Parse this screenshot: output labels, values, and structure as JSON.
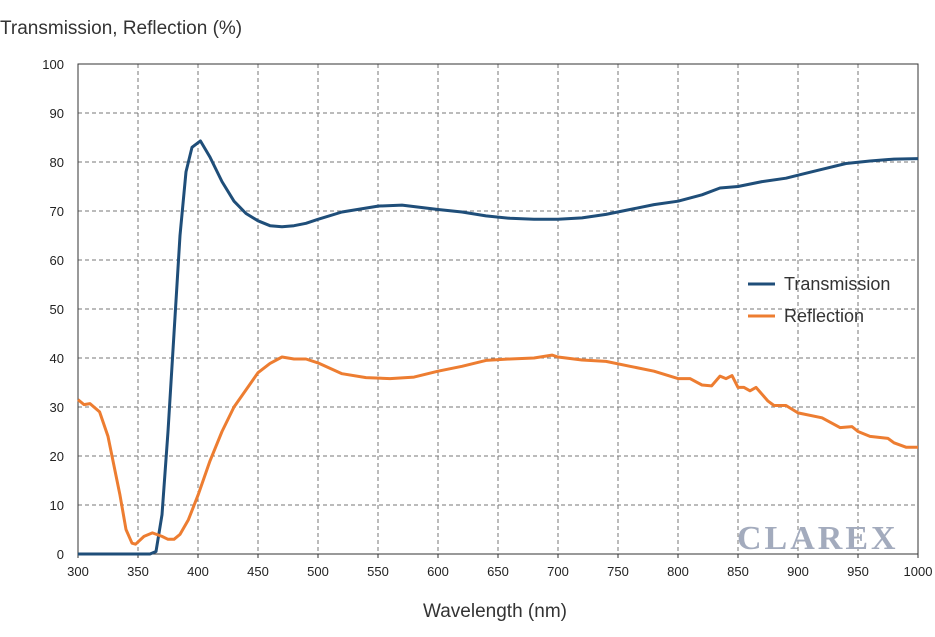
{
  "chart_data": {
    "type": "line",
    "title": "Transmission, Reflection (%)",
    "xlabel": "Wavelength (nm)",
    "ylabel": "Transmission, Reflection (%)",
    "xlim": [
      300,
      1000
    ],
    "ylim": [
      0,
      100
    ],
    "xticks": [
      300,
      350,
      400,
      450,
      500,
      550,
      600,
      650,
      700,
      750,
      800,
      850,
      900,
      950,
      1000
    ],
    "yticks": [
      0,
      10,
      20,
      30,
      40,
      50,
      60,
      70,
      80,
      90,
      100
    ],
    "grid": true,
    "legend_position": "right",
    "watermark": "CLAREX",
    "series": [
      {
        "name": "Transmission",
        "color": "#1f4e79",
        "x": [
          300,
          360,
          365,
          370,
          375,
          380,
          385,
          390,
          395,
          402,
          410,
          420,
          430,
          440,
          450,
          460,
          470,
          480,
          490,
          500,
          520,
          550,
          570,
          600,
          620,
          640,
          660,
          680,
          700,
          720,
          740,
          760,
          780,
          800,
          820,
          835,
          850,
          870,
          890,
          900,
          920,
          940,
          960,
          980,
          1000
        ],
        "y": [
          0,
          0,
          0.5,
          8,
          25,
          45,
          65,
          78,
          83,
          84.3,
          81,
          76,
          72,
          69.5,
          68,
          67,
          66.8,
          67,
          67.5,
          68.3,
          69.8,
          71,
          71.2,
          70.3,
          69.8,
          69,
          68.5,
          68.3,
          68.3,
          68.6,
          69.3,
          70.3,
          71.3,
          72,
          73.3,
          74.7,
          75,
          76,
          76.7,
          77.3,
          78.5,
          79.7,
          80.2,
          80.6,
          80.7
        ]
      },
      {
        "name": "Reflection",
        "color": "#ed7d31",
        "x": [
          300,
          305,
          310,
          318,
          325,
          335,
          340,
          345,
          348,
          355,
          362,
          370,
          375,
          380,
          385,
          392,
          400,
          410,
          420,
          430,
          440,
          450,
          460,
          470,
          480,
          490,
          500,
          520,
          540,
          560,
          580,
          600,
          620,
          640,
          660,
          680,
          695,
          700,
          720,
          740,
          760,
          780,
          800,
          810,
          820,
          828,
          835,
          840,
          845,
          850,
          855,
          860,
          865,
          875,
          880,
          890,
          900,
          920,
          935,
          945,
          950,
          960,
          975,
          980,
          990,
          1000
        ],
        "y": [
          31.5,
          30.5,
          30.7,
          29,
          24,
          12,
          5,
          2.2,
          2,
          3.6,
          4.3,
          3.6,
          3,
          3,
          4,
          7,
          12,
          19,
          25,
          30,
          33.5,
          37,
          38.9,
          40.2,
          39.8,
          39.8,
          39,
          36.8,
          36,
          35.8,
          36.1,
          37.3,
          38.3,
          39.5,
          39.8,
          40,
          40.6,
          40.2,
          39.6,
          39.3,
          38.3,
          37.3,
          35.8,
          35.8,
          34.5,
          34.3,
          36.3,
          35.8,
          36.4,
          34,
          34,
          33.3,
          34,
          31.2,
          30.3,
          30.3,
          28.8,
          27.8,
          25.8,
          26,
          25,
          24,
          23.6,
          22.7,
          21.8,
          21.8
        ]
      }
    ]
  }
}
